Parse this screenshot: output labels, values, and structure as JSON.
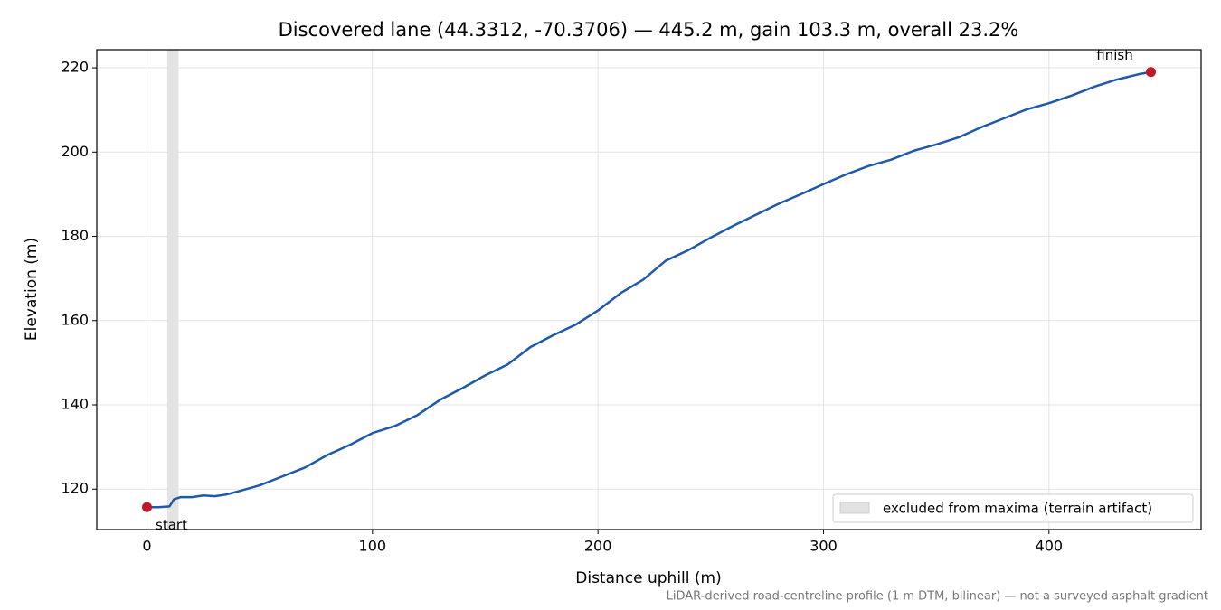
{
  "chart_data": {
    "type": "line",
    "title": "Discovered lane (44.3312, -70.3706) — 445.2 m, gain 103.3 m, overall 23.2%",
    "xlabel": "Distance uphill (m)",
    "ylabel": "Elevation (m)",
    "note": "LiDAR-derived road-centreline profile (1 m DTM, bilinear) — not a surveyed asphalt gradient",
    "x": [
      0,
      5,
      10,
      12,
      15,
      20,
      25,
      30,
      35,
      40,
      50,
      60,
      70,
      80,
      90,
      100,
      110,
      120,
      130,
      140,
      150,
      160,
      170,
      180,
      190,
      200,
      210,
      220,
      230,
      240,
      250,
      260,
      270,
      280,
      290,
      300,
      310,
      320,
      330,
      340,
      350,
      360,
      370,
      380,
      390,
      400,
      410,
      420,
      430,
      440,
      445.2
    ],
    "series": [
      {
        "color": "#1f5aa8",
        "values": [
          115.7,
          115.7,
          115.9,
          117.6,
          118.1,
          118.1,
          118.5,
          118.3,
          118.7,
          119.4,
          120.9,
          123.0,
          125.1,
          128.1,
          130.5,
          133.3,
          135.0,
          137.6,
          141.2,
          144.0,
          147.0,
          149.6,
          153.7,
          156.5,
          159.0,
          162.4,
          166.5,
          169.7,
          174.2,
          176.7,
          179.7,
          182.5,
          185.1,
          187.7,
          190.0,
          192.4,
          194.7,
          196.7,
          198.2,
          200.3,
          201.8,
          203.5,
          205.9,
          208.0,
          210.1,
          211.6,
          213.4,
          215.5,
          217.2,
          218.5,
          219.0
        ]
      }
    ],
    "endpoint_color": "#c0182b",
    "annotations": [
      "start",
      "finish"
    ],
    "excluded_span": {
      "label": "excluded from maxima (terrain artifact)",
      "range": [
        9,
        14
      ],
      "color": "#d9d9d9"
    },
    "legend": "lower right",
    "xlim": [
      -22.26,
      467.46
    ],
    "ylim": [
      110.4,
      224.3
    ],
    "xticks": [
      0,
      100,
      200,
      300,
      400
    ],
    "yticks": [
      120,
      140,
      160,
      180,
      200,
      220
    ],
    "grid": true
  }
}
